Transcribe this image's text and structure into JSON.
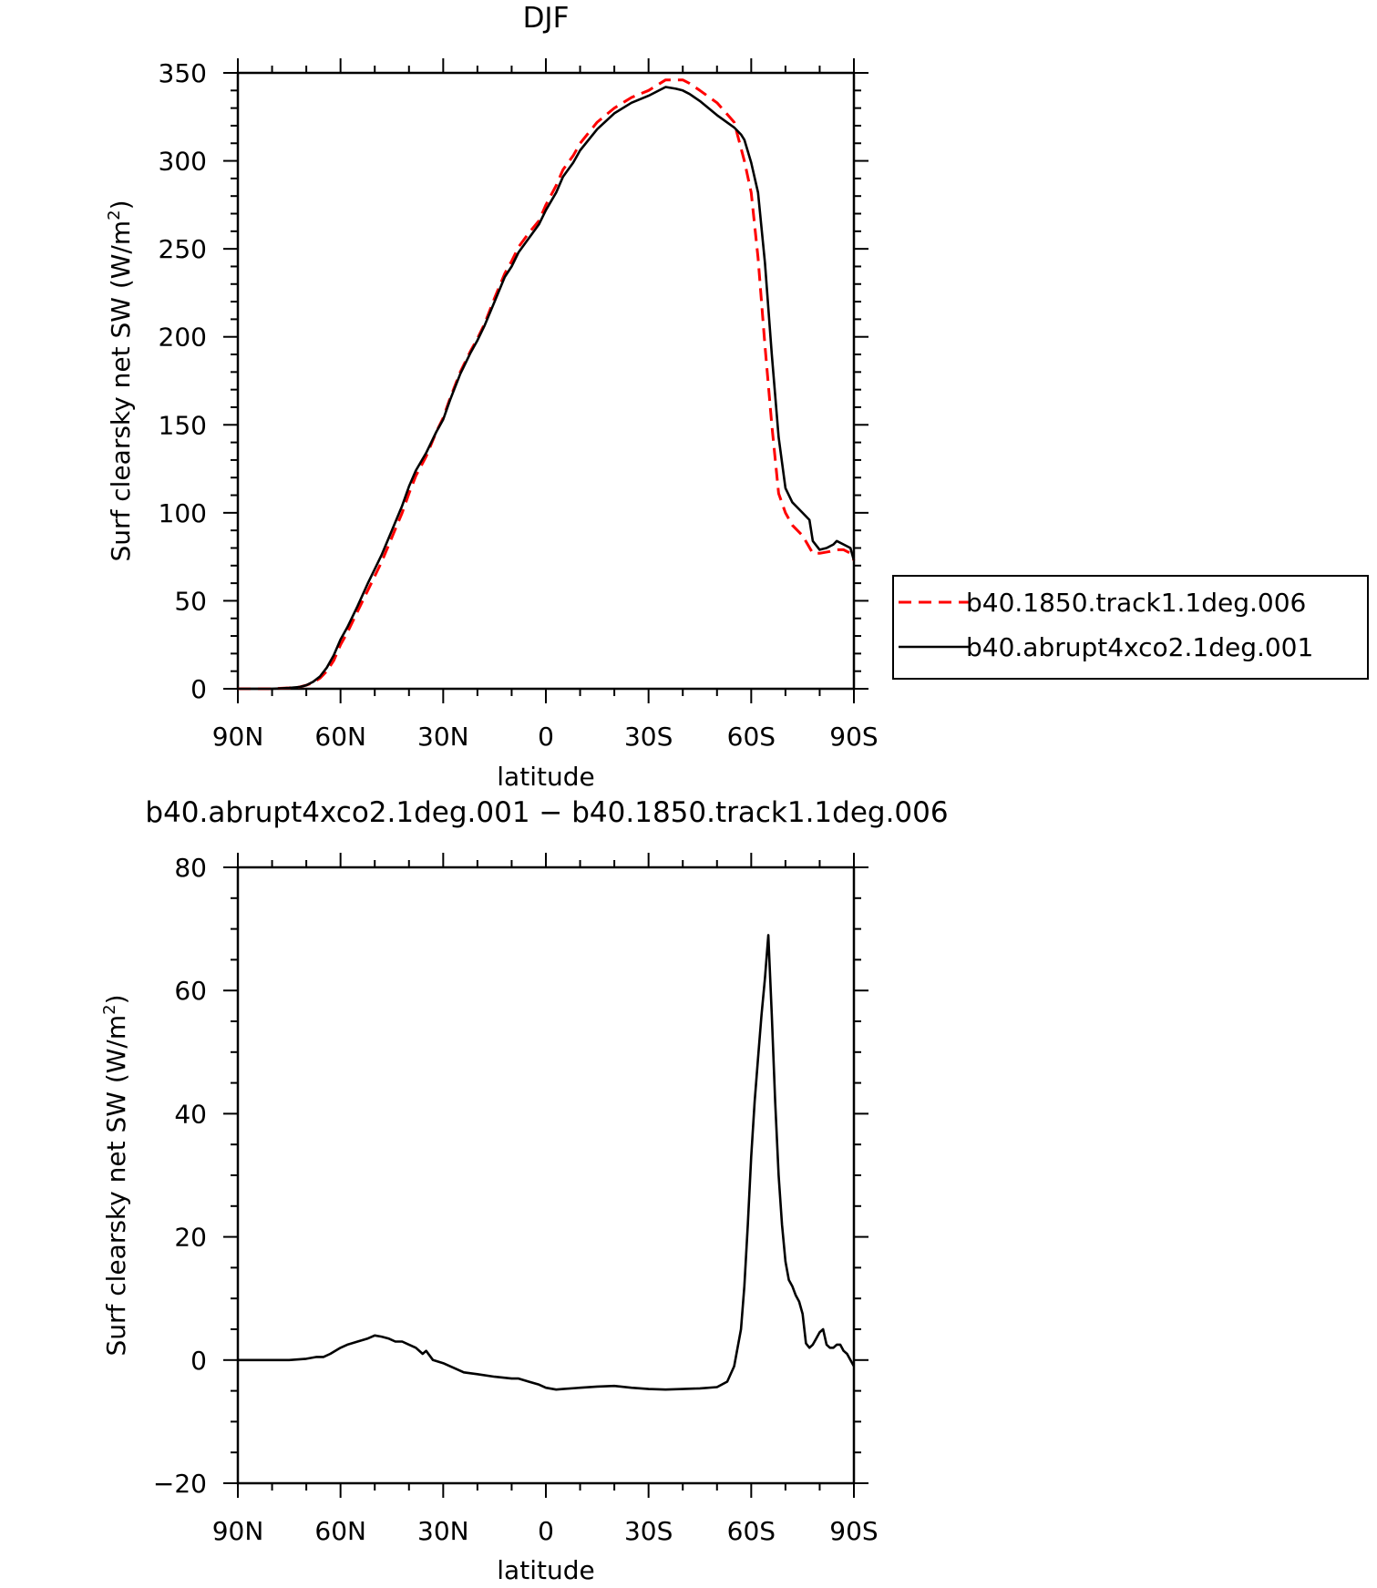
{
  "chart_data": [
    {
      "type": "line",
      "title": "DJF",
      "xlabel": "latitude",
      "ylabel": "Surf clearsky net SW (W/m",
      "ylabel_sup": "2",
      "ylabel_close": ")",
      "xlim": [
        90,
        -90
      ],
      "ylim": [
        0,
        350
      ],
      "xticks": [
        90,
        60,
        30,
        0,
        -30,
        -60,
        -90
      ],
      "xtick_labels": [
        "90N",
        "60N",
        "30N",
        "0",
        "30S",
        "60S",
        "90S"
      ],
      "yticks": [
        0,
        50,
        100,
        150,
        200,
        250,
        300,
        350
      ],
      "ytick_labels": [
        "0",
        "50",
        "100",
        "150",
        "200",
        "250",
        "300",
        "350"
      ],
      "legend": "right",
      "series": [
        {
          "name": "b40.1850.track1.1deg.006",
          "color": "#ff0000",
          "dash": "dashed",
          "x": [
            90,
            80,
            75,
            72,
            70,
            68,
            66,
            64,
            62,
            60,
            58,
            55,
            52,
            50,
            48,
            45,
            42,
            40,
            38,
            35,
            32,
            30,
            28,
            25,
            22,
            20,
            18,
            15,
            12,
            10,
            8,
            5,
            2,
            0,
            -3,
            -5,
            -8,
            -10,
            -15,
            -20,
            -25,
            -30,
            -35,
            -38,
            -40,
            -42,
            -45,
            -50,
            -55,
            -58,
            -60,
            -62,
            -64,
            -66,
            -68,
            -70,
            -72,
            -75,
            -78,
            -80,
            -83,
            -85,
            -87,
            -89,
            -90
          ],
          "y": [
            0,
            0,
            0.5,
            1,
            2,
            3.5,
            6,
            10,
            16,
            25,
            32,
            44,
            56,
            64,
            72,
            86,
            100,
            111,
            121,
            132,
            146,
            154,
            165,
            180,
            192,
            199,
            207,
            222,
            236,
            243,
            251,
            259,
            266,
            275,
            286,
            295,
            303,
            310,
            322,
            330,
            336,
            340,
            346,
            346,
            346,
            344,
            340,
            333,
            322,
            300,
            282,
            245,
            195,
            150,
            111,
            100,
            93,
            87,
            77,
            77,
            78,
            79,
            79,
            77,
            73
          ]
        },
        {
          "name": "b40.abrupt4xco2.1deg.001",
          "color": "#000000",
          "dash": "solid",
          "x": [
            90,
            80,
            75,
            72,
            70,
            68,
            66,
            64,
            62,
            60,
            58,
            55,
            52,
            50,
            48,
            45,
            42,
            40,
            38,
            35,
            32,
            30,
            28,
            25,
            22,
            20,
            18,
            15,
            12,
            10,
            8,
            5,
            2,
            0,
            -3,
            -5,
            -8,
            -10,
            -15,
            -20,
            -25,
            -30,
            -35,
            -38,
            -40,
            -42,
            -45,
            -50,
            -55,
            -57,
            -58,
            -60,
            -62,
            -64,
            -66,
            -68,
            -70,
            -72,
            -75,
            -77,
            -78,
            -80,
            -82,
            -84,
            -85,
            -87,
            -89,
            -90
          ],
          "y": [
            0,
            0,
            0.5,
            1,
            2,
            4,
            7,
            12,
            19,
            28,
            35,
            47,
            60,
            68,
            76,
            90,
            104,
            115,
            124,
            134,
            146,
            153,
            164,
            179,
            191,
            198,
            206,
            220,
            234,
            240,
            248,
            256,
            264,
            272,
            282,
            291,
            299,
            306,
            318,
            327,
            333,
            337,
            342,
            341,
            340,
            338,
            334,
            326,
            319,
            315,
            312,
            299,
            282,
            242,
            190,
            143,
            114,
            106,
            100,
            96,
            84,
            79,
            80,
            82,
            84,
            82,
            80,
            73
          ]
        }
      ]
    },
    {
      "type": "line",
      "title": "b40.abrupt4xco2.1deg.001 − b40.1850.track1.1deg.006",
      "xlabel": "latitude",
      "ylabel": "Surf clearsky net SW (W/m",
      "ylabel_sup": "2",
      "ylabel_close": ")",
      "xlim": [
        90,
        -90
      ],
      "ylim": [
        -20,
        80
      ],
      "xticks": [
        90,
        60,
        30,
        0,
        -30,
        -60,
        -90
      ],
      "xtick_labels": [
        "90N",
        "60N",
        "30N",
        "0",
        "30S",
        "60S",
        "90S"
      ],
      "yticks": [
        -20,
        0,
        20,
        40,
        60,
        80
      ],
      "ytick_labels": [
        "−20",
        "0",
        "20",
        "40",
        "60",
        "80"
      ],
      "series": [
        {
          "color": "#000000",
          "dash": "solid",
          "x": [
            90,
            80,
            75,
            70,
            67,
            65,
            63,
            60,
            58,
            55,
            52,
            50,
            48,
            46,
            44,
            42,
            40,
            38,
            36,
            35,
            33,
            30,
            28,
            26,
            24,
            20,
            15,
            10,
            8,
            5,
            2,
            0,
            -3,
            -5,
            -10,
            -15,
            -20,
            -25,
            -30,
            -35,
            -40,
            -45,
            -50,
            -53,
            -55,
            -57,
            -58,
            -59,
            -60,
            -61,
            -62,
            -63,
            -64,
            -65,
            -66,
            -67,
            -68,
            -69,
            -70,
            -71,
            -72,
            -73,
            -74,
            -75,
            -76,
            -77,
            -78,
            -79,
            -80,
            -81,
            -82,
            -83,
            -84,
            -85,
            -86,
            -87,
            -88,
            -89,
            -90
          ],
          "y": [
            0,
            0,
            0,
            0.2,
            0.5,
            0.5,
            1,
            2,
            2.5,
            3,
            3.5,
            4,
            3.8,
            3.5,
            3,
            3,
            2.5,
            2,
            1,
            1.5,
            0,
            -0.5,
            -1,
            -1.5,
            -2,
            -2.3,
            -2.7,
            -3,
            -3,
            -3.5,
            -4,
            -4.5,
            -4.8,
            -4.7,
            -4.5,
            -4.3,
            -4.2,
            -4.5,
            -4.7,
            -4.8,
            -4.7,
            -4.6,
            -4.4,
            -3.5,
            -1,
            5,
            12,
            22,
            33,
            42,
            49,
            56,
            62,
            69,
            56,
            42,
            30,
            22,
            16,
            13,
            12,
            10.5,
            9.5,
            7.5,
            2.7,
            2,
            2.5,
            3.5,
            4.5,
            5,
            2.5,
            2,
            2,
            2.5,
            2.5,
            1.5,
            1,
            0,
            -1
          ]
        }
      ]
    }
  ]
}
